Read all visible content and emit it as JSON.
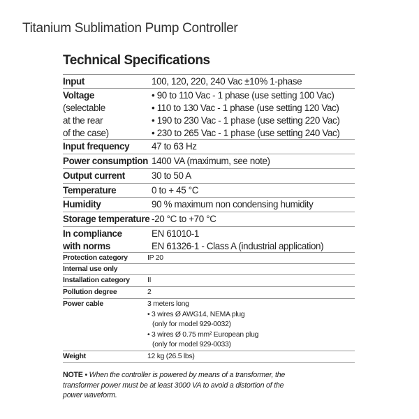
{
  "title": "Titanium Sublimation Pump Controller",
  "heading": "Technical Specifications",
  "rows": [
    {
      "label": "Input",
      "values": [
        "100, 120, 220, 240 Vac ±10% 1-phase"
      ]
    },
    {
      "label": "Voltage",
      "label_sub": [
        "(selectable",
        "at the rear",
        "of the case)"
      ],
      "values": [
        "• 90 to 110 Vac - 1 phase (use setting 100 Vac)",
        "• 110 to 130 Vac - 1 phase (use setting 120 Vac)",
        "• 190 to 230 Vac - 1 phase (use setting 220 Vac)",
        "• 230 to 265 Vac - 1 phase (use setting 240 Vac)"
      ]
    },
    {
      "label": "Input frequency",
      "values": [
        "47 to 63 Hz"
      ]
    },
    {
      "label": "Power consumption",
      "values": [
        "1400 VA (maximum, see note)"
      ]
    },
    {
      "label": "Output current",
      "values": [
        "30 to 50 A"
      ]
    },
    {
      "label": "Temperature",
      "values": [
        "0 to + 45 °C"
      ]
    },
    {
      "label": "Humidity",
      "values": [
        "90 % maximum non condensing humidity"
      ]
    },
    {
      "label": "Storage temperature",
      "values": [
        "-20 °C to +70 °C"
      ]
    },
    {
      "label": "In compliance",
      "label2": "with norms",
      "values": [
        "EN 61010-1",
        "EN 61326-1 - Class A (industrial application)"
      ]
    },
    {
      "label": "Protection category",
      "values": [
        "IP 20"
      ]
    },
    {
      "label": "Internal use only",
      "values": [
        ""
      ]
    },
    {
      "label": "Installation category",
      "values": [
        "II"
      ]
    },
    {
      "label": "Pollution degree",
      "values": [
        "2"
      ]
    },
    {
      "label": "Power cable",
      "values": [
        "3 meters long",
        "• 3 wires Ø AWG14, NEMA plug",
        " (only for model 929-0032)",
        "• 3 wires Ø 0.75 mm² European plug",
        " (only for model 929-0033)"
      ]
    },
    {
      "label": "Weight",
      "values": [
        "12 kg (26.5 lbs)"
      ]
    }
  ],
  "note": {
    "label": "NOTE",
    "text": "• When the controller is powered by means of a transformer, the transformer power must be at least 3000 VA to avoid a distortion of the power waveform."
  }
}
